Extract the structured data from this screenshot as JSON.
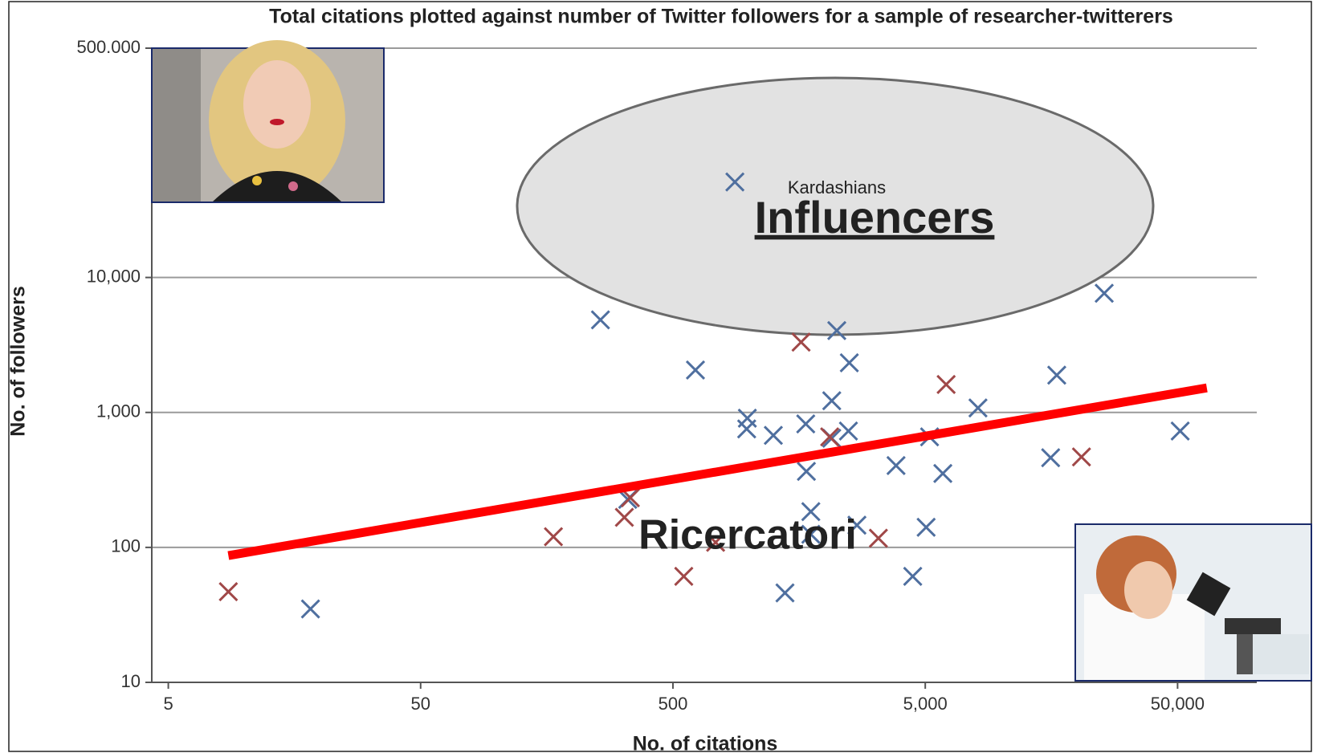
{
  "chart_data": {
    "type": "scatter",
    "title": "Total citations plotted against number of Twitter followers for a sample of researcher-twitterers",
    "x_label": "No. of citations",
    "y_label": "No. of followers",
    "log_x": true,
    "log_y": true,
    "grid": true,
    "xlim": [
      4.3,
      103000
    ],
    "ylim": [
      10,
      500000
    ],
    "xticks": [
      5,
      50,
      500,
      {
        "value": 5000,
        "label": "5,000"
      },
      {
        "value": 50000,
        "label": "50,000"
      }
    ],
    "yticks": [
      10,
      100,
      {
        "value": 1000,
        "label": "1,000"
      },
      {
        "value": 10000,
        "label": "10,000"
      },
      {
        "value": 500000,
        "label": "500.000"
      }
    ],
    "series": [
      {
        "color": "#4f6f9f",
        "x": [
          880,
          258,
          25600,
          2230,
          2500,
          614,
          16600,
          2130,
          8090,
          986,
          980,
          1250,
          1680,
          2130,
          2480,
          5200,
          51200,
          15700,
          3830,
          1690,
          5870,
          331,
          1760,
          2680,
          5040,
          1760,
          4460,
          1390,
          18.3
        ],
        "values": [
          51000,
          4850,
          7640,
          4040,
          2330,
          2060,
          1890,
          1220,
          1080,
          906,
          755,
          676,
          822,
          644,
          728,
          659,
          728,
          462,
          404,
          366,
          353,
          227,
          184,
          146,
          141,
          125,
          61,
          46,
          35
        ]
      },
      {
        "color": "#a04848",
        "x": [
          1610,
          6050,
          2090,
          20800,
          339,
          321,
          168,
          738,
          3260,
          552,
          8.65
        ],
        "values": [
          3320,
          1610,
          659,
          468,
          233,
          167,
          120,
          109,
          117,
          61,
          47
        ]
      }
    ],
    "trend_line": {
      "color": "#ff0000",
      "x": [
        8.65,
        65300
      ],
      "values": [
        87,
        1520
      ]
    },
    "annotations": {
      "cluster": "Kardashians",
      "upper": "Influencers",
      "lower": "Ricercatori"
    }
  }
}
